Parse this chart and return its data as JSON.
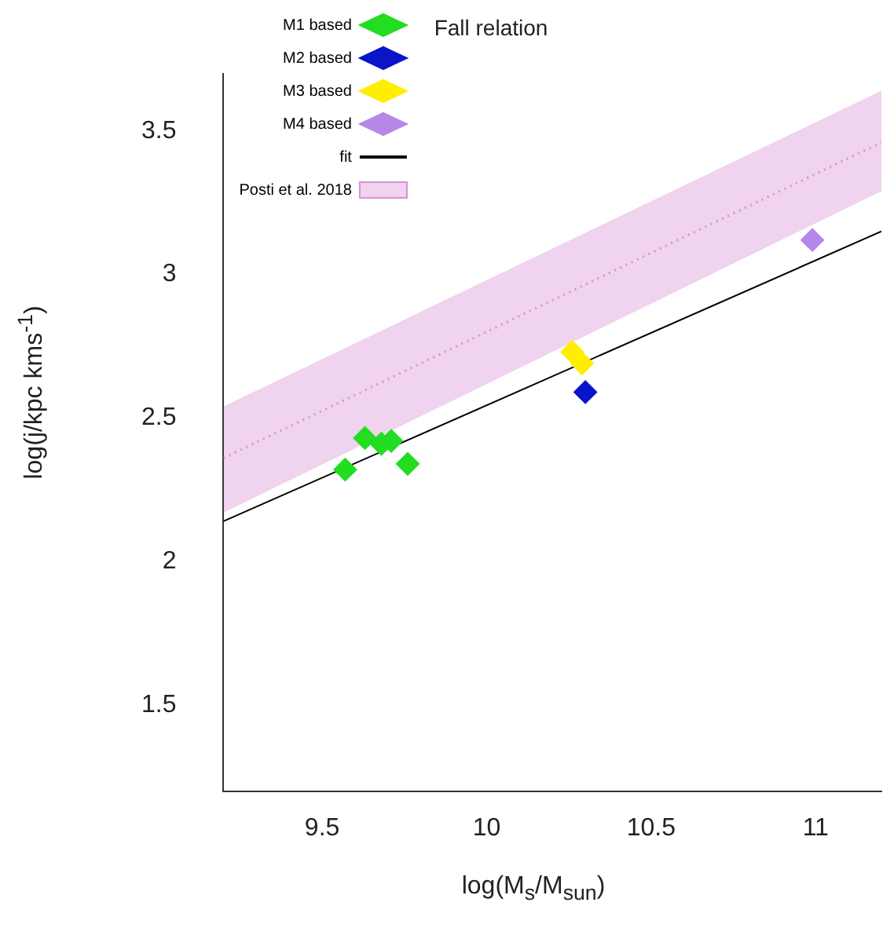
{
  "chart_data": {
    "type": "scatter",
    "title": "Fall relation",
    "xlabel": "log(M$_{s}$/M$_{sun}$)",
    "ylabel": "log(j/kpc kms$^{-1}$)",
    "xlim": [
      9.2,
      11.2
    ],
    "xticks": [
      9.5,
      10,
      10.5,
      11
    ],
    "ylim": [
      1.2,
      3.7
    ],
    "yticks": [
      1.5,
      2,
      2.5,
      3,
      3.5
    ],
    "grid": false,
    "legend": "top left",
    "marker": "diamond",
    "series": [
      {
        "name": "M1 based",
        "color": "#22dd22",
        "x": [
          9.57,
          9.63,
          9.68,
          9.71,
          9.76
        ],
        "values": [
          2.32,
          2.43,
          2.41,
          2.42,
          2.34
        ]
      },
      {
        "name": "M2 based",
        "color": "#0a14c8",
        "x": [
          10.3
        ],
        "values": [
          2.59
        ]
      },
      {
        "name": "M3 based",
        "color": "#ffee00",
        "x": [
          10.26,
          10.29
        ],
        "values": [
          2.73,
          2.69
        ]
      },
      {
        "name": "M4 based",
        "color": "#b388e8",
        "x": [
          10.99
        ],
        "values": [
          3.12
        ]
      },
      {
        "name": "fit",
        "type": "line",
        "color": "#000000",
        "x": [
          9.2,
          11.2
        ],
        "values": [
          2.14,
          3.15
        ],
        "line_style": "solid",
        "marker": "none"
      },
      {
        "name": "Posti et al. 2018",
        "type": "line",
        "color": "#d890d8",
        "marker": "none",
        "x": [
          9.2,
          11.2
        ],
        "values": [
          2.36,
          3.46
        ],
        "lower": [
          2.17,
          3.29
        ],
        "upper": [
          2.54,
          3.64
        ],
        "line_style": "dotted"
      }
    ]
  }
}
